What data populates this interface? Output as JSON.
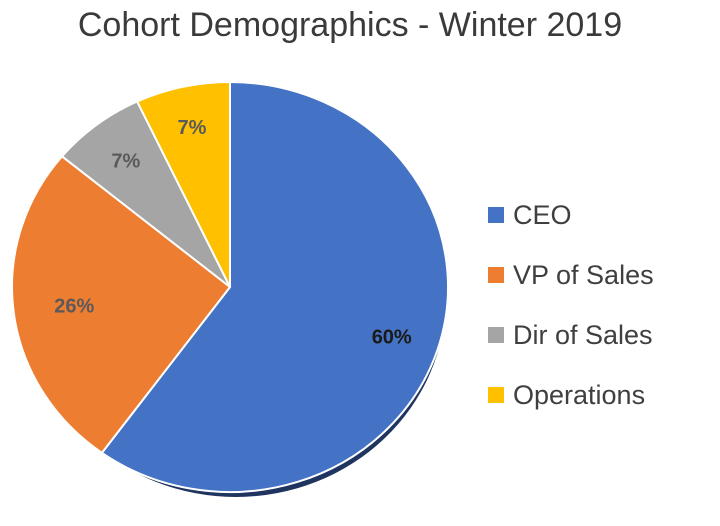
{
  "chart_data": {
    "type": "pie",
    "title": "Cohort Demographics - Winter 2019",
    "slices": [
      {
        "name": "CEO",
        "value": 60,
        "label": "60%",
        "color": "#4472C4",
        "label_color": "#1a1a1a"
      },
      {
        "name": "VP of Sales",
        "value": 26,
        "label": "26%",
        "color": "#ED7D31",
        "label_color": "#5a5a5a"
      },
      {
        "name": "Dir of Sales",
        "value": 7,
        "label": "7%",
        "color": "#A5A5A5",
        "label_color": "#5a5a5a"
      },
      {
        "name": "Operations",
        "value": 7,
        "label": "7%",
        "color": "#FFC000",
        "label_color": "#5a5a5a"
      }
    ],
    "legend_position": "right"
  }
}
